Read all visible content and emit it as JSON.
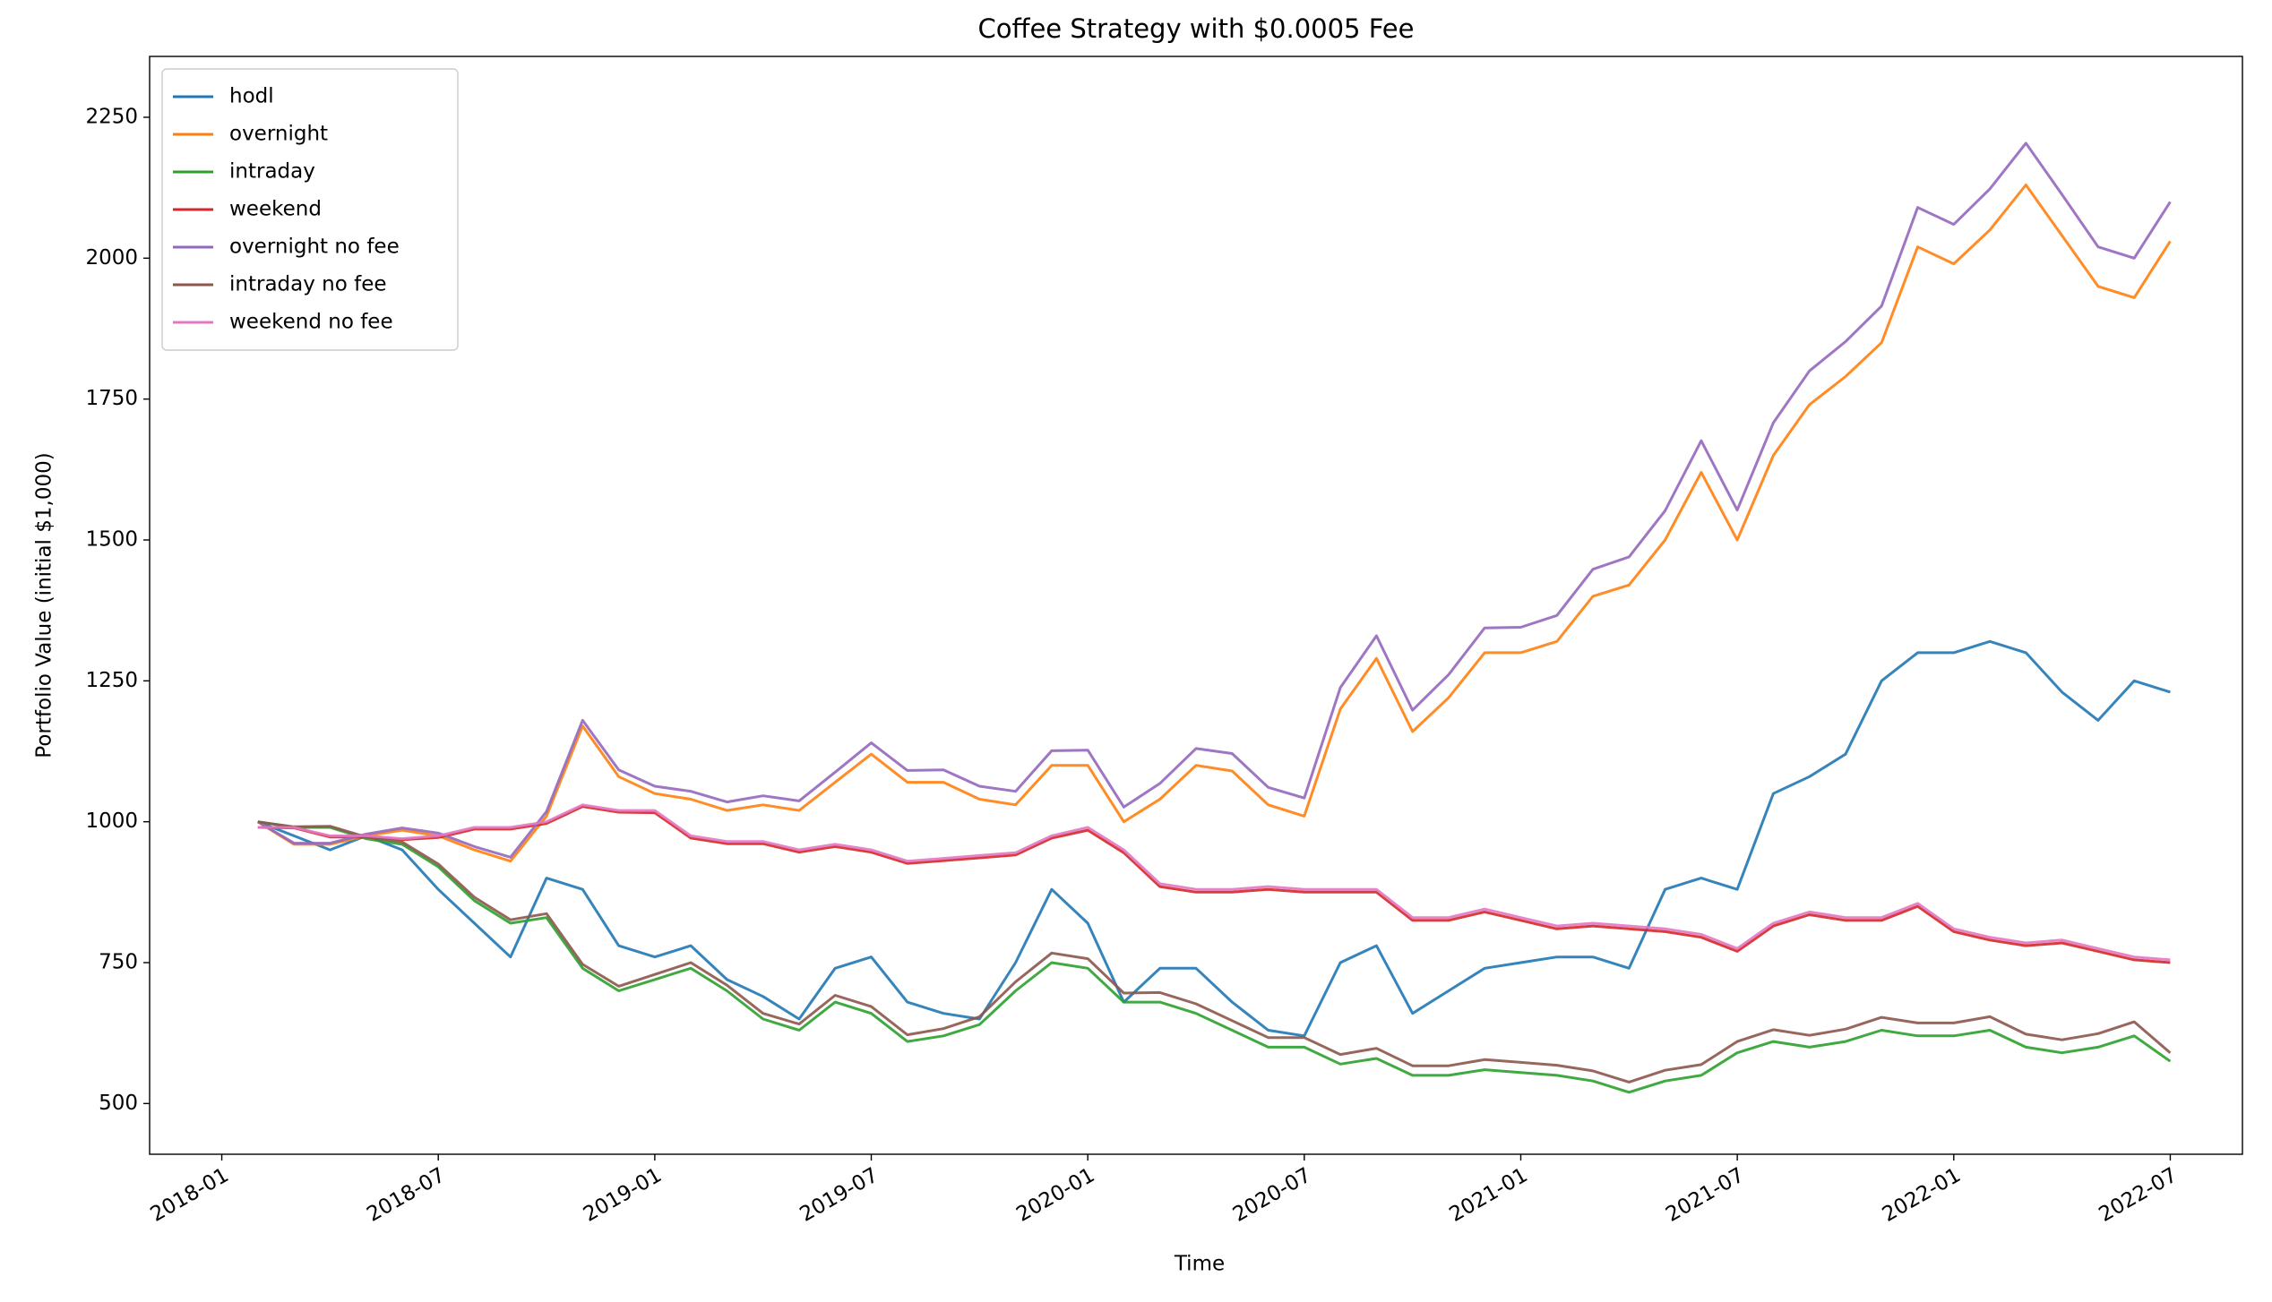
{
  "chart_data": {
    "type": "line",
    "title": "Coffee Strategy with $0.0005 Fee",
    "xlabel": "Time",
    "ylabel": "Portfolio Value (initial $1,000)",
    "x": [
      "2018-02",
      "2018-03",
      "2018-04",
      "2018-05",
      "2018-06",
      "2018-07",
      "2018-08",
      "2018-09",
      "2018-10",
      "2018-11",
      "2018-12",
      "2019-01",
      "2019-02",
      "2019-03",
      "2019-04",
      "2019-05",
      "2019-06",
      "2019-07",
      "2019-08",
      "2019-09",
      "2019-10",
      "2019-11",
      "2019-12",
      "2020-01",
      "2020-02",
      "2020-03",
      "2020-04",
      "2020-05",
      "2020-06",
      "2020-07",
      "2020-08",
      "2020-09",
      "2020-10",
      "2020-11",
      "2020-12",
      "2021-01",
      "2021-02",
      "2021-03",
      "2021-04",
      "2021-05",
      "2021-06",
      "2021-07",
      "2021-08",
      "2021-09",
      "2021-10",
      "2021-11",
      "2021-12",
      "2022-01",
      "2022-02",
      "2022-03",
      "2022-04",
      "2022-05",
      "2022-06",
      "2022-07"
    ],
    "xlim": [
      "2017-11",
      "2022-09"
    ],
    "xticks": [
      "2018-01",
      "2018-07",
      "2019-01",
      "2019-07",
      "2020-01",
      "2020-07",
      "2021-01",
      "2021-07",
      "2022-01",
      "2022-07"
    ],
    "ylim": [
      410,
      2358
    ],
    "yticks": [
      500,
      750,
      1000,
      1250,
      1500,
      1750,
      2000,
      2250
    ],
    "legend": "upper left",
    "series": [
      {
        "name": "hodl",
        "color": "#1f77b4",
        "values": [
          1000,
          975,
          950,
          975,
          950,
          880,
          820,
          760,
          900,
          880,
          780,
          760,
          780,
          720,
          690,
          650,
          740,
          760,
          680,
          660,
          650,
          750,
          880,
          820,
          680,
          740,
          740,
          680,
          630,
          620,
          750,
          780,
          660,
          700,
          740,
          750,
          760,
          760,
          740,
          880,
          900,
          880,
          1050,
          1080,
          1120,
          1250,
          1300,
          1300,
          1320,
          1300,
          1230,
          1180,
          1250,
          1230
        ]
      },
      {
        "name": "overnight",
        "color": "#ff7f0e",
        "values": [
          1000,
          960,
          960,
          975,
          985,
          975,
          950,
          930,
          1010,
          1170,
          1080,
          1050,
          1040,
          1020,
          1030,
          1020,
          1070,
          1120,
          1070,
          1070,
          1040,
          1030,
          1100,
          1100,
          1000,
          1040,
          1100,
          1090,
          1030,
          1010,
          1200,
          1290,
          1160,
          1220,
          1300,
          1300,
          1320,
          1400,
          1420,
          1500,
          1620,
          1500,
          1650,
          1740,
          1790,
          1850,
          2020,
          1990,
          2050,
          2130,
          2040,
          1950,
          1930,
          2030
        ]
      },
      {
        "name": "intraday",
        "color": "#2ca02c",
        "values": [
          1000,
          990,
          990,
          970,
          960,
          920,
          860,
          820,
          830,
          740,
          700,
          720,
          740,
          700,
          650,
          630,
          680,
          660,
          610,
          620,
          640,
          700,
          750,
          740,
          680,
          680,
          660,
          630,
          600,
          600,
          570,
          580,
          550,
          550,
          560,
          555,
          550,
          540,
          520,
          540,
          550,
          590,
          610,
          600,
          610,
          630,
          620,
          620,
          630,
          600,
          590,
          600,
          620,
          575
        ]
      },
      {
        "name": "weekend",
        "color": "#d62728",
        "values": [
          990,
          989,
          973,
          973,
          968,
          972,
          987,
          987,
          997,
          1027,
          1017,
          1016,
          971,
          961,
          961,
          946,
          956,
          946,
          926,
          931,
          936,
          941,
          971,
          985,
          945,
          885,
          875,
          875,
          880,
          875,
          875,
          875,
          825,
          825,
          840,
          825,
          810,
          815,
          810,
          805,
          795,
          770,
          815,
          835,
          825,
          825,
          850,
          805,
          790,
          780,
          785,
          770,
          755,
          750
        ]
      },
      {
        "name": "overnight no fee",
        "color": "#9467bd",
        "values": [
          1000,
          962,
          962,
          978,
          989,
          980,
          956,
          937,
          1018,
          1180,
          1092,
          1063,
          1054,
          1035,
          1046,
          1037,
          1088,
          1140,
          1091,
          1092,
          1063,
          1054,
          1126,
          1127,
          1026,
          1068,
          1130,
          1121,
          1061,
          1042,
          1238,
          1330,
          1198,
          1261,
          1344,
          1345,
          1366,
          1448,
          1470,
          1552,
          1676,
          1553,
          1708,
          1800,
          1852,
          1915,
          2090,
          2060,
          2123,
          2204,
          2113,
          2020,
          2000,
          2100
        ]
      },
      {
        "name": "intraday no fee",
        "color": "#8c564b",
        "values": [
          1000,
          991,
          992,
          973,
          964,
          925,
          866,
          826,
          837,
          747,
          708,
          729,
          750,
          710,
          660,
          641,
          692,
          672,
          622,
          633,
          654,
          716,
          767,
          757,
          696,
          697,
          677,
          647,
          617,
          617,
          587,
          598,
          567,
          567,
          578,
          573,
          568,
          558,
          538,
          559,
          569,
          610,
          631,
          621,
          632,
          653,
          643,
          643,
          654,
          623,
          613,
          624,
          645,
          590
        ]
      },
      {
        "name": "weekend no fee",
        "color": "#e377c2",
        "values": [
          990,
          990,
          975,
          975,
          970,
          975,
          990,
          990,
          1000,
          1030,
          1020,
          1020,
          975,
          965,
          965,
          950,
          960,
          950,
          930,
          935,
          940,
          945,
          975,
          990,
          950,
          890,
          880,
          880,
          885,
          880,
          880,
          880,
          830,
          830,
          845,
          830,
          815,
          820,
          815,
          810,
          800,
          775,
          820,
          840,
          830,
          830,
          855,
          810,
          795,
          785,
          790,
          775,
          760,
          755
        ]
      }
    ]
  }
}
